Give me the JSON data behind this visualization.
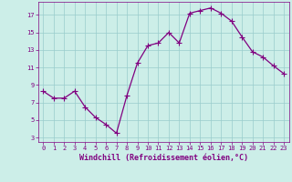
{
  "x": [
    0,
    1,
    2,
    3,
    4,
    5,
    6,
    7,
    8,
    9,
    10,
    11,
    12,
    13,
    14,
    15,
    16,
    17,
    18,
    19,
    20,
    21,
    22,
    23
  ],
  "y": [
    8.3,
    7.5,
    7.5,
    8.3,
    6.5,
    5.3,
    4.5,
    3.5,
    7.8,
    11.5,
    13.5,
    13.8,
    15.0,
    13.8,
    17.2,
    17.5,
    17.8,
    17.2,
    16.3,
    14.5,
    12.8,
    12.2,
    11.2,
    10.3
  ],
  "line_color": "#800080",
  "marker": "+",
  "marker_size": 4,
  "linewidth": 0.9,
  "bg_color": "#cceee8",
  "grid_color": "#99cccc",
  "xlabel": "Windchill (Refroidissement éolien,°C)",
  "xlim": [
    -0.5,
    23.5
  ],
  "ylim": [
    2.5,
    18.5
  ],
  "xticks": [
    0,
    1,
    2,
    3,
    4,
    5,
    6,
    7,
    8,
    9,
    10,
    11,
    12,
    13,
    14,
    15,
    16,
    17,
    18,
    19,
    20,
    21,
    22,
    23
  ],
  "yticks": [
    3,
    5,
    7,
    9,
    11,
    13,
    15,
    17
  ],
  "tick_color": "#800080",
  "label_color": "#800080",
  "tick_fontsize": 5.0,
  "xlabel_fontsize": 6.0
}
